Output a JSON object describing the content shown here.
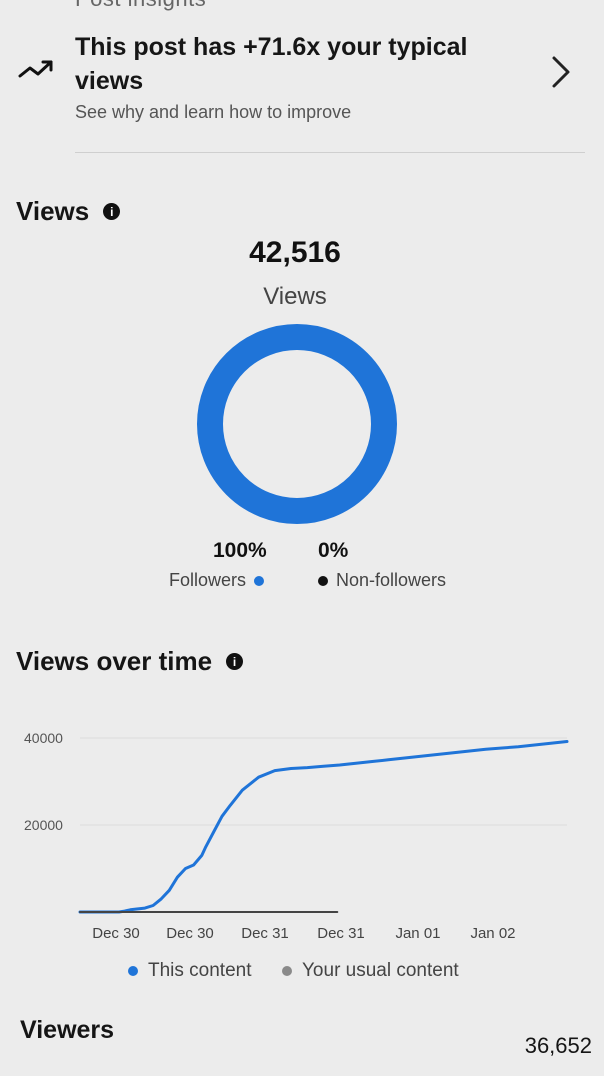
{
  "top_cut_text": "Post insights",
  "insight": {
    "title": "This post has +71.6x your typical views",
    "subtitle": "See why and learn how to improve"
  },
  "views_section": {
    "title": "Views",
    "total": "42,516",
    "label": "Views",
    "followers_pct": "100%",
    "nonfollowers_pct": "0%",
    "followers_label": "Followers",
    "nonfollowers_label": "Non-followers"
  },
  "views_over_time": {
    "title": "Views over time",
    "legend_this": "This content",
    "legend_usual": "Your usual content"
  },
  "viewers": {
    "label": "Viewers",
    "value": "36,652"
  },
  "colors": {
    "accent_blue": "#1f74d8",
    "usual_gray": "#8a8a8a",
    "dark_line": "#444444",
    "background": "#ececec"
  },
  "chart_data": {
    "type": "line",
    "x_labels": [
      "Dec 30",
      "Dec 30",
      "Dec 31",
      "Dec 31",
      "Jan 01",
      "Jan 02"
    ],
    "y_ticks": [
      "40000",
      "20000"
    ],
    "ylim": [
      0,
      40000
    ],
    "series": [
      {
        "name": "This content",
        "x": [
          0,
          0.35,
          0.48,
          0.55,
          0.62,
          0.7,
          0.8,
          0.9,
          1.0,
          1.1,
          1.2,
          1.3,
          1.4,
          1.5,
          1.55,
          1.65,
          1.75,
          1.85,
          2.0,
          2.2,
          2.4,
          2.6,
          2.8,
          3.0,
          3.2,
          3.4,
          3.6,
          3.8,
          4.0,
          4.2,
          4.4,
          4.6,
          4.8,
          5.0,
          5.2,
          5.4,
          5.6,
          5.8,
          6.0
        ],
        "values": [
          0,
          0,
          0,
          200,
          500,
          700,
          900,
          1500,
          3000,
          5000,
          8000,
          10000,
          10800,
          13000,
          15000,
          18500,
          22000,
          24500,
          28000,
          31000,
          32500,
          33000,
          33200,
          33500,
          33800,
          34200,
          34600,
          35000,
          35400,
          35800,
          36200,
          36600,
          37000,
          37400,
          37700,
          38000,
          38400,
          38800,
          39200
        ]
      },
      {
        "name": "Your usual content",
        "x": [
          0,
          3.17
        ],
        "values": [
          0,
          0
        ]
      }
    ]
  }
}
